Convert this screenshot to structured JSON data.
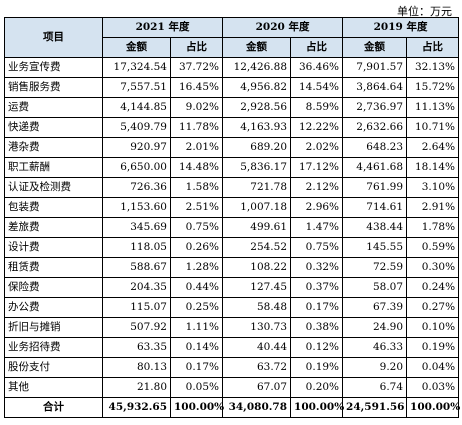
{
  "unit": "单位：万元",
  "header": {
    "item_label": "项目",
    "years": [
      "2021 年度",
      "2020 年度",
      "2019 年度"
    ],
    "sub_amount": "金额",
    "sub_ratio": "占比"
  },
  "rows": [
    {
      "name": "业务宣传费",
      "v": [
        "17,324.54",
        "37.72%",
        "12,426.88",
        "36.46%",
        "7,901.57",
        "32.13%"
      ]
    },
    {
      "name": "销售服务费",
      "v": [
        "7,557.51",
        "16.45%",
        "4,956.82",
        "14.54%",
        "3,864.64",
        "15.72%"
      ]
    },
    {
      "name": "运费",
      "v": [
        "4,144.85",
        "9.02%",
        "2,928.56",
        "8.59%",
        "2,736.97",
        "11.13%"
      ]
    },
    {
      "name": "快递费",
      "v": [
        "5,409.79",
        "11.78%",
        "4,163.93",
        "12.22%",
        "2,632.66",
        "10.71%"
      ]
    },
    {
      "name": "港杂费",
      "v": [
        "920.97",
        "2.01%",
        "689.20",
        "2.02%",
        "648.23",
        "2.64%"
      ]
    },
    {
      "name": "职工薪酬",
      "v": [
        "6,650.00",
        "14.48%",
        "5,836.17",
        "17.12%",
        "4,461.68",
        "18.14%"
      ]
    },
    {
      "name": "认证及检测费",
      "v": [
        "726.36",
        "1.58%",
        "721.78",
        "2.12%",
        "761.99",
        "3.10%"
      ]
    },
    {
      "name": "包装费",
      "v": [
        "1,153.60",
        "2.51%",
        "1,007.18",
        "2.96%",
        "714.61",
        "2.91%"
      ]
    },
    {
      "name": "差旅费",
      "v": [
        "345.69",
        "0.75%",
        "499.61",
        "1.47%",
        "438.44",
        "1.78%"
      ]
    },
    {
      "name": "设计费",
      "v": [
        "118.05",
        "0.26%",
        "254.52",
        "0.75%",
        "145.55",
        "0.59%"
      ]
    },
    {
      "name": "租赁费",
      "v": [
        "588.67",
        "1.28%",
        "108.22",
        "0.32%",
        "72.59",
        "0.30%"
      ]
    },
    {
      "name": "保险费",
      "v": [
        "204.35",
        "0.44%",
        "127.45",
        "0.37%",
        "58.07",
        "0.24%"
      ]
    },
    {
      "name": "办公费",
      "v": [
        "115.07",
        "0.25%",
        "58.48",
        "0.17%",
        "67.39",
        "0.27%"
      ]
    },
    {
      "name": "折旧与摊销",
      "v": [
        "507.92",
        "1.11%",
        "130.73",
        "0.38%",
        "24.90",
        "0.10%"
      ]
    },
    {
      "name": "业务招待费",
      "v": [
        "63.35",
        "0.14%",
        "40.44",
        "0.12%",
        "46.33",
        "0.19%"
      ]
    },
    {
      "name": "股份支付",
      "v": [
        "80.13",
        "0.17%",
        "63.72",
        "0.19%",
        "9.20",
        "0.04%"
      ]
    },
    {
      "name": "其他",
      "v": [
        "21.80",
        "0.05%",
        "67.07",
        "0.20%",
        "6.74",
        "0.03%"
      ]
    }
  ],
  "total": {
    "name": "合计",
    "v": [
      "45,932.65",
      "100.00%",
      "34,080.78",
      "100.00%",
      "24,591.56",
      "100.00%"
    ]
  }
}
